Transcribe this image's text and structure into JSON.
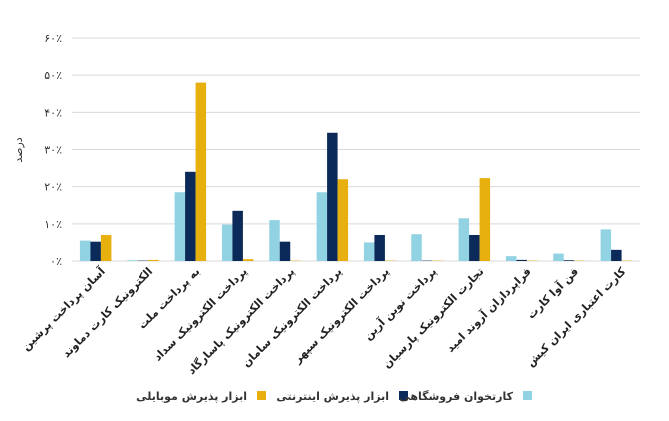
{
  "chart_data": {
    "type": "bar",
    "title": "",
    "ylabel": "درصد",
    "xlabel": "",
    "ylim": [
      0,
      60
    ],
    "yticks": [
      "۰٪",
      "۱۰٪",
      "۲۰٪",
      "۳۰٪",
      "۴۰٪",
      "۵۰٪",
      "۶۰٪"
    ],
    "ytick_values": [
      0,
      10,
      20,
      30,
      40,
      50,
      60
    ],
    "grid": true,
    "legend_position": "bottom",
    "categories": [
      "آسان پرداخت پرشین",
      "الکترونیک کارت دماوند",
      "به پرداخت ملت",
      "پرداخت الکترونیک سداد",
      "پرداخت الکترونیک پاسارگاد",
      "پرداخت الکترونیک سامان",
      "پرداخت الکترونیک سپهر",
      "پرداخت نوین آرین",
      "تجارت الکترونیک پارسیان",
      "فراپردازان آروند امید",
      "فن آوا کارت",
      "کارت اعتباری ایران کیش"
    ],
    "series": [
      {
        "name": "کارتخوان فروشگاهی",
        "color": "#92d3e3",
        "values": [
          5.5,
          0.2,
          18.5,
          9.8,
          11,
          18.5,
          5,
          7.2,
          11.5,
          1.3,
          2,
          8.5
        ]
      },
      {
        "name": "ابزار پذیرش اینترنتی",
        "color": "#0b2a59",
        "values": [
          5.2,
          0.1,
          24,
          13.5,
          5.2,
          34.5,
          7,
          0.1,
          7,
          0.3,
          0.2,
          3
        ]
      },
      {
        "name": "ابزار پذیرش موبایلی",
        "color": "#e8b00e",
        "values": [
          7,
          0.3,
          48,
          0.5,
          0.1,
          22,
          0.1,
          0.1,
          22.3,
          0.1,
          0.1,
          0.1
        ]
      }
    ]
  }
}
